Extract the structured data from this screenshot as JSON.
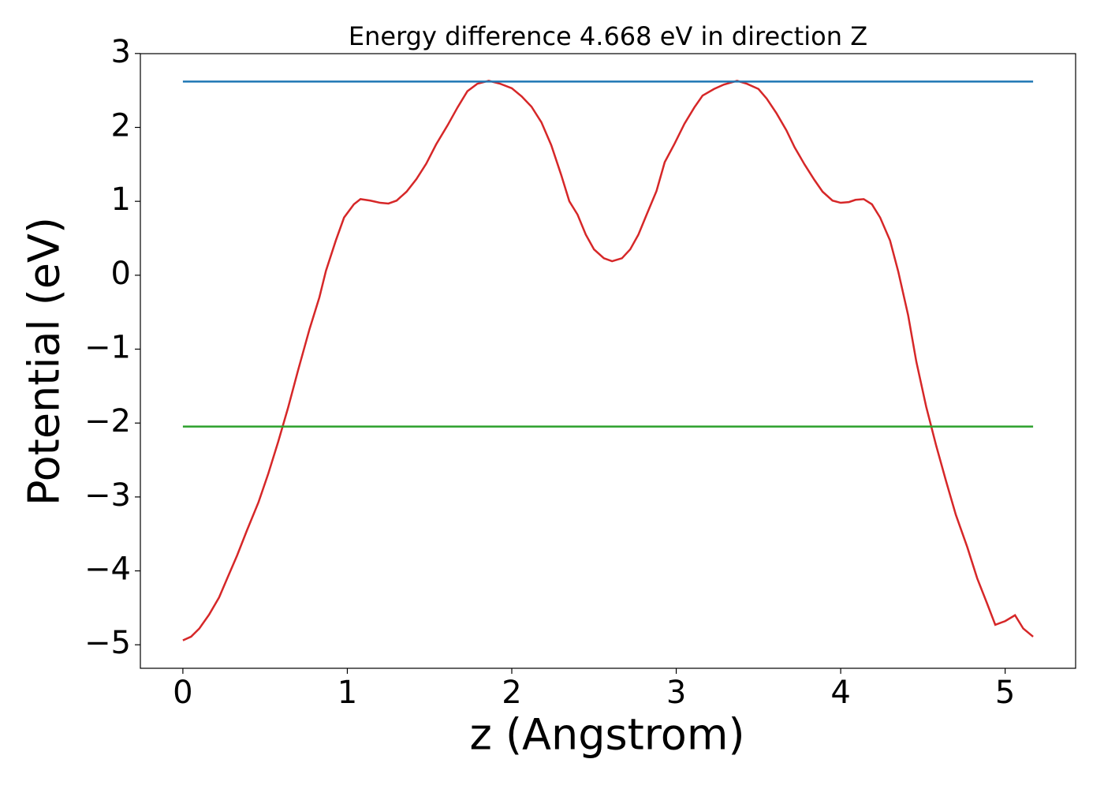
{
  "chart_data": {
    "type": "line",
    "title": "Energy difference 4.668 eV in direction Z",
    "xlabel": "z (Angstrom)",
    "ylabel": "Potential (eV)",
    "xlim": [
      -0.2585,
      5.4285
    ],
    "ylim": [
      -5.318,
      2.998
    ],
    "xticks": [
      0,
      1,
      2,
      3,
      4,
      5
    ],
    "yticks": [
      {
        "value": -5,
        "label": "−5"
      },
      {
        "value": -4,
        "label": "−4"
      },
      {
        "value": -3,
        "label": "−3"
      },
      {
        "value": -2,
        "label": "−2"
      },
      {
        "value": -1,
        "label": "−1"
      },
      0,
      1,
      2,
      3
    ],
    "series": [
      {
        "color": "#d62728",
        "x": [
          0,
          0.05,
          0.1,
          0.16,
          0.22,
          0.27,
          0.33,
          0.39,
          0.46,
          0.52,
          0.58,
          0.64,
          0.7,
          0.77,
          0.83,
          0.87,
          0.93,
          0.98,
          1.04,
          1.08,
          1.14,
          1.2,
          1.25,
          1.3,
          1.36,
          1.42,
          1.48,
          1.54,
          1.61,
          1.67,
          1.73,
          1.79,
          1.86,
          1.93,
          2.0,
          2.06,
          2.12,
          2.18,
          2.24,
          2.3,
          2.35,
          2.4,
          2.45,
          2.5,
          2.56,
          2.61,
          2.67,
          2.72,
          2.77,
          2.82,
          2.88,
          2.93,
          2.99,
          3.05,
          3.11,
          3.16,
          3.23,
          3.29,
          3.37,
          3.43,
          3.5,
          3.55,
          3.61,
          3.67,
          3.72,
          3.78,
          3.84,
          3.89,
          3.95,
          4.0,
          4.05,
          4.09,
          4.14,
          4.19,
          4.24,
          4.3,
          4.35,
          4.41,
          4.46,
          4.52,
          4.58,
          4.64,
          4.7,
          4.77,
          4.83,
          4.89,
          4.94,
          5.0,
          5.06,
          5.11,
          5.17
        ],
        "values": [
          -4.94,
          -4.89,
          -4.78,
          -4.59,
          -4.36,
          -4.1,
          -3.79,
          -3.45,
          -3.07,
          -2.68,
          -2.25,
          -1.79,
          -1.29,
          -0.73,
          -0.3,
          0.06,
          0.47,
          0.78,
          0.96,
          1.03,
          1.01,
          0.98,
          0.97,
          1.01,
          1.13,
          1.3,
          1.51,
          1.77,
          2.03,
          2.27,
          2.49,
          2.59,
          2.63,
          2.59,
          2.53,
          2.42,
          2.28,
          2.07,
          1.76,
          1.36,
          1.0,
          0.82,
          0.55,
          0.35,
          0.23,
          0.19,
          0.23,
          0.35,
          0.55,
          0.82,
          1.14,
          1.53,
          1.78,
          2.05,
          2.27,
          2.43,
          2.52,
          2.58,
          2.63,
          2.59,
          2.52,
          2.39,
          2.19,
          1.96,
          1.73,
          1.5,
          1.29,
          1.13,
          1.01,
          0.98,
          0.99,
          1.02,
          1.03,
          0.96,
          0.78,
          0.47,
          0.05,
          -0.54,
          -1.17,
          -1.78,
          -2.3,
          -2.78,
          -3.24,
          -3.68,
          -4.1,
          -4.44,
          -4.73,
          -4.68,
          -4.6,
          -4.78,
          -4.89
        ]
      },
      {
        "color": "#1f77b4",
        "x": [
          0,
          5.17
        ],
        "values": [
          2.62,
          2.62
        ]
      },
      {
        "color": "#2ca02c",
        "x": [
          0,
          5.17
        ],
        "values": [
          -2.048,
          -2.048
        ]
      }
    ]
  }
}
